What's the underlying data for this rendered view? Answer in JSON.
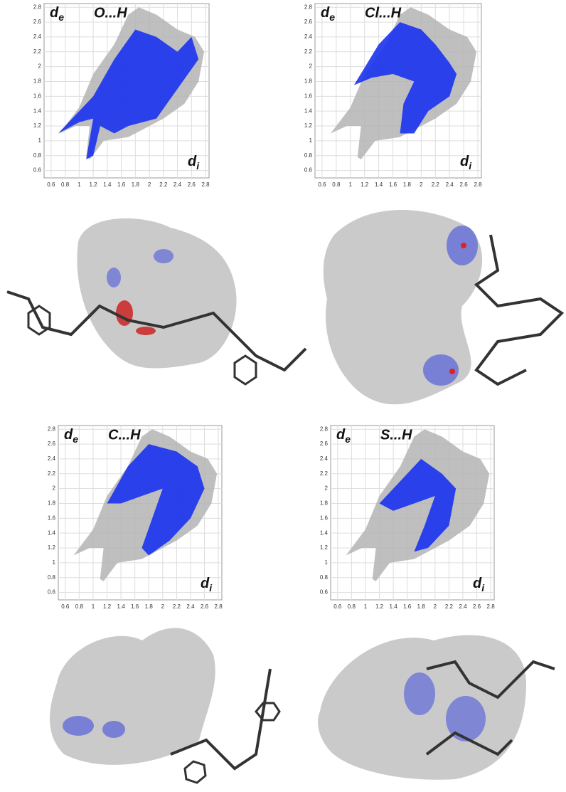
{
  "chart_data": [
    {
      "type": "area",
      "title": "O...H",
      "x_label": [
        "d",
        "i"
      ],
      "y_label": [
        "d",
        "e"
      ],
      "xlim": [
        0.5,
        2.85
      ],
      "ylim": [
        0.5,
        2.85
      ],
      "xticks": [
        0.6,
        0.8,
        1.0,
        1.2,
        1.4,
        1.6,
        1.8,
        2.0,
        2.2,
        2.4,
        2.6,
        2.8
      ],
      "yticks": [
        0.6,
        0.8,
        1.0,
        1.2,
        1.4,
        1.6,
        1.8,
        2.0,
        2.2,
        2.4,
        2.6,
        2.8
      ],
      "grid": true,
      "series": [
        {
          "color": "#b4b4b4",
          "x": [
            0.72,
            1.0,
            1.2,
            1.5,
            1.7,
            1.85,
            2.1,
            2.4,
            2.65,
            2.78,
            2.7,
            2.5,
            2.2,
            1.9,
            1.7,
            1.35,
            1.15,
            1.1,
            1.15,
            0.95
          ],
          "y": [
            1.1,
            1.45,
            1.9,
            2.3,
            2.7,
            2.8,
            2.7,
            2.5,
            2.4,
            2.2,
            1.8,
            1.5,
            1.3,
            1.15,
            1.05,
            1.0,
            0.75,
            0.78,
            1.2,
            1.2
          ]
        },
        {
          "color": "#1a32f0",
          "x": [
            0.7,
            1.2,
            1.5,
            1.8,
            2.1,
            2.4,
            2.6,
            2.7,
            2.4,
            2.1,
            1.7,
            1.5,
            1.3,
            1.2,
            1.1,
            1.2,
            1.0
          ],
          "y": [
            1.1,
            1.6,
            2.1,
            2.5,
            2.4,
            2.2,
            2.4,
            2.1,
            1.7,
            1.3,
            1.2,
            1.1,
            1.2,
            0.8,
            0.75,
            1.3,
            1.25
          ]
        }
      ]
    },
    {
      "type": "area",
      "title": "Cl...H",
      "x_label": [
        "d",
        "i"
      ],
      "y_label": [
        "d",
        "e"
      ],
      "xlim": [
        0.5,
        2.85
      ],
      "ylim": [
        0.5,
        2.85
      ],
      "xticks": [
        0.6,
        0.8,
        1.0,
        1.2,
        1.4,
        1.6,
        1.8,
        2.0,
        2.2,
        2.4,
        2.6,
        2.8
      ],
      "yticks": [
        0.6,
        0.8,
        1.0,
        1.2,
        1.4,
        1.6,
        1.8,
        2.0,
        2.2,
        2.4,
        2.6,
        2.8
      ],
      "grid": true,
      "series": [
        {
          "color": "#b4b4b4",
          "x": [
            0.72,
            1.0,
            1.2,
            1.5,
            1.7,
            1.85,
            2.1,
            2.4,
            2.65,
            2.78,
            2.7,
            2.5,
            2.2,
            1.9,
            1.7,
            1.35,
            1.15,
            1.1,
            1.15,
            0.95
          ],
          "y": [
            1.1,
            1.45,
            1.9,
            2.3,
            2.7,
            2.8,
            2.7,
            2.5,
            2.4,
            2.2,
            1.8,
            1.5,
            1.3,
            1.15,
            1.05,
            1.0,
            0.75,
            0.78,
            1.2,
            1.2
          ]
        },
        {
          "color": "#1a32f0",
          "x": [
            1.05,
            1.4,
            1.7,
            2.0,
            2.2,
            2.4,
            2.5,
            2.4,
            2.1,
            1.9,
            1.7,
            1.75,
            1.9,
            1.6,
            1.3
          ],
          "y": [
            1.75,
            2.3,
            2.6,
            2.5,
            2.3,
            2.05,
            1.9,
            1.6,
            1.4,
            1.1,
            1.1,
            1.5,
            1.8,
            1.9,
            1.85
          ]
        }
      ]
    },
    {
      "type": "area",
      "title": "C...H",
      "x_label": [
        "d",
        "i"
      ],
      "y_label": [
        "d",
        "e"
      ],
      "xlim": [
        0.5,
        2.85
      ],
      "ylim": [
        0.5,
        2.85
      ],
      "xticks": [
        0.6,
        0.8,
        1.0,
        1.2,
        1.4,
        1.6,
        1.8,
        2.0,
        2.2,
        2.4,
        2.6,
        2.8
      ],
      "yticks": [
        0.6,
        0.8,
        1.0,
        1.2,
        1.4,
        1.6,
        1.8,
        2.0,
        2.2,
        2.4,
        2.6,
        2.8
      ],
      "grid": true,
      "series": [
        {
          "color": "#b4b4b4",
          "x": [
            0.72,
            1.0,
            1.2,
            1.5,
            1.7,
            1.85,
            2.1,
            2.4,
            2.65,
            2.78,
            2.7,
            2.5,
            2.2,
            1.9,
            1.7,
            1.35,
            1.15,
            1.1,
            1.15,
            0.95
          ],
          "y": [
            1.1,
            1.45,
            1.9,
            2.3,
            2.7,
            2.8,
            2.7,
            2.5,
            2.4,
            2.2,
            1.8,
            1.5,
            1.3,
            1.15,
            1.05,
            1.0,
            0.75,
            0.78,
            1.2,
            1.2
          ]
        },
        {
          "color": "#1a32f0",
          "x": [
            1.2,
            1.5,
            1.8,
            2.2,
            2.5,
            2.6,
            2.4,
            2.1,
            1.8,
            1.7,
            1.85,
            2.0,
            1.7,
            1.4
          ],
          "y": [
            1.8,
            2.3,
            2.6,
            2.5,
            2.3,
            2.0,
            1.6,
            1.3,
            1.1,
            1.2,
            1.6,
            2.0,
            1.9,
            1.8
          ]
        }
      ]
    },
    {
      "type": "area",
      "title": "S...H",
      "x_label": [
        "d",
        "i"
      ],
      "y_label": [
        "d",
        "e"
      ],
      "xlim": [
        0.5,
        2.85
      ],
      "ylim": [
        0.5,
        2.85
      ],
      "xticks": [
        0.6,
        0.8,
        1.0,
        1.2,
        1.4,
        1.6,
        1.8,
        2.0,
        2.2,
        2.4,
        2.6,
        2.8
      ],
      "yticks": [
        0.6,
        0.8,
        1.0,
        1.2,
        1.4,
        1.6,
        1.8,
        2.0,
        2.2,
        2.4,
        2.6,
        2.8
      ],
      "grid": true,
      "series": [
        {
          "color": "#b4b4b4",
          "x": [
            0.72,
            1.0,
            1.2,
            1.5,
            1.7,
            1.85,
            2.1,
            2.4,
            2.65,
            2.78,
            2.7,
            2.5,
            2.2,
            1.9,
            1.7,
            1.35,
            1.15,
            1.1,
            1.15,
            0.95
          ],
          "y": [
            1.1,
            1.45,
            1.9,
            2.3,
            2.7,
            2.8,
            2.7,
            2.5,
            2.4,
            2.2,
            1.8,
            1.5,
            1.3,
            1.15,
            1.05,
            1.0,
            0.75,
            0.78,
            1.2,
            1.2
          ]
        },
        {
          "color": "#1a32f0",
          "x": [
            1.2,
            1.5,
            1.8,
            2.1,
            2.3,
            2.2,
            1.9,
            1.7,
            1.85,
            2.0,
            1.7,
            1.4
          ],
          "y": [
            1.8,
            2.1,
            2.4,
            2.2,
            2.0,
            1.5,
            1.2,
            1.15,
            1.5,
            1.9,
            1.8,
            1.7
          ]
        }
      ]
    }
  ]
}
